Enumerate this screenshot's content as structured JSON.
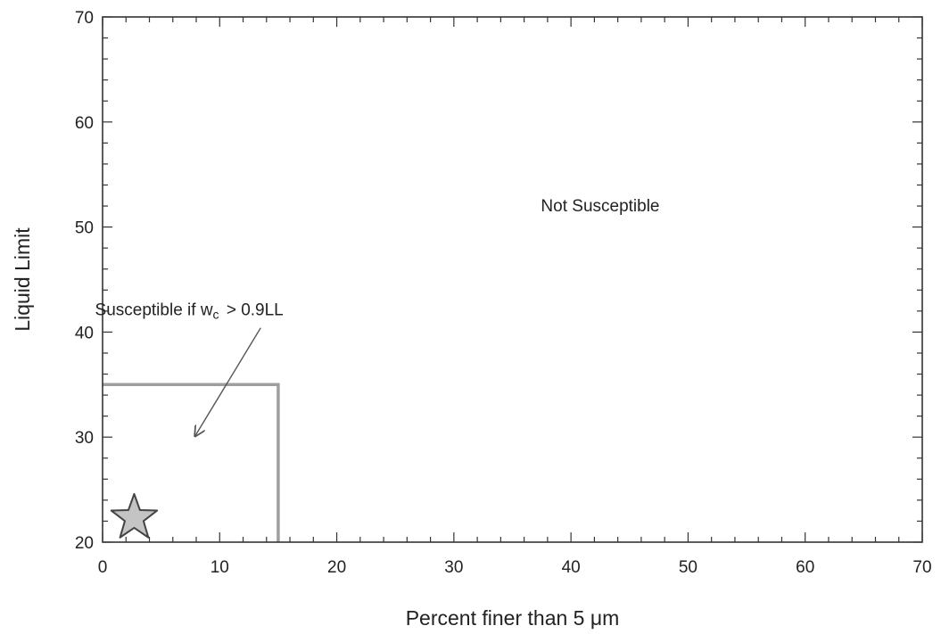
{
  "chart_data": {
    "type": "scatter",
    "xlabel": "Percent finer than 5 μm",
    "ylabel": "Liquid Limit",
    "xlim": [
      0,
      70
    ],
    "ylim": [
      20,
      70
    ],
    "x_ticks": [
      0,
      10,
      20,
      30,
      40,
      50,
      60,
      70
    ],
    "y_ticks": [
      20,
      30,
      40,
      50,
      60,
      70
    ],
    "x_tick_labels": [
      "0",
      "10",
      "20",
      "30",
      "40",
      "50",
      "60",
      "70"
    ],
    "y_tick_labels": [
      "20",
      "30",
      "40",
      "50",
      "60",
      "70"
    ],
    "minor_tick_step": 2,
    "grid": false,
    "region_boundary": {
      "points": [
        [
          0,
          35
        ],
        [
          15,
          35
        ],
        [
          15,
          20
        ]
      ],
      "color": "#9e9e9e"
    },
    "points": [
      {
        "x": 2.7,
        "y": 22.3,
        "marker": "star",
        "fill": "#c4c4c4",
        "stroke": "#444444"
      }
    ],
    "annotations": [
      {
        "id": "not-susceptible",
        "parts": [
          "Not Susceptible"
        ],
        "x": 42.5,
        "y": 51.5
      },
      {
        "id": "susceptible",
        "parts": [
          "Susceptible if w",
          "c",
          " > 0.9LL"
        ],
        "x": 7.4,
        "y": 41.6,
        "arrow_from": [
          13.5,
          40.4
        ],
        "arrow_to": [
          7.9,
          30.1
        ]
      }
    ]
  }
}
